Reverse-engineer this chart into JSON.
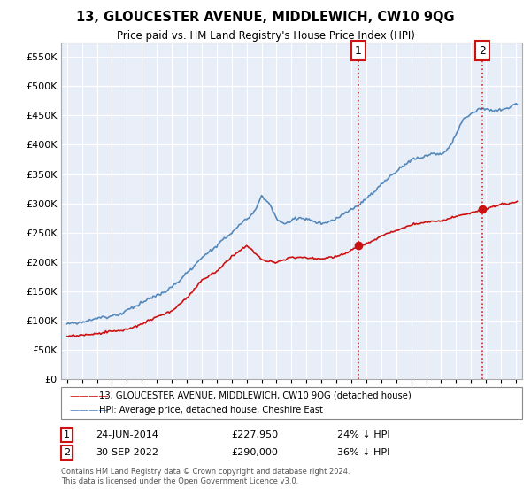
{
  "title": "13, GLOUCESTER AVENUE, MIDDLEWICH, CW10 9QG",
  "subtitle": "Price paid vs. HM Land Registry's House Price Index (HPI)",
  "ytick_values": [
    0,
    50000,
    100000,
    150000,
    200000,
    250000,
    300000,
    350000,
    400000,
    450000,
    500000,
    550000
  ],
  "xlim_start": 1994.6,
  "xlim_end": 2025.4,
  "ylim_min": 0,
  "ylim_max": 575000,
  "background_color": "#ffffff",
  "plot_bg_color": "#e8eef8",
  "grid_color": "#ffffff",
  "hpi_color": "#5588bb",
  "price_color": "#cc1111",
  "marker1_date": 2014.47,
  "marker1_price": 227950,
  "marker2_date": 2022.75,
  "marker2_price": 290000,
  "legend_line1": "13, GLOUCESTER AVENUE, MIDDLEWICH, CW10 9QG (detached house)",
  "legend_line2": "HPI: Average price, detached house, Cheshire East",
  "footnote_line1": "Contains HM Land Registry data © Crown copyright and database right 2024.",
  "footnote_line2": "This data is licensed under the Open Government Licence v3.0.",
  "table_row1_num": "1",
  "table_row1_date": "24-JUN-2014",
  "table_row1_price": "£227,950",
  "table_row1_hpi": "24% ↓ HPI",
  "table_row2_num": "2",
  "table_row2_date": "30-SEP-2022",
  "table_row2_price": "£290,000",
  "table_row2_hpi": "36% ↓ HPI"
}
